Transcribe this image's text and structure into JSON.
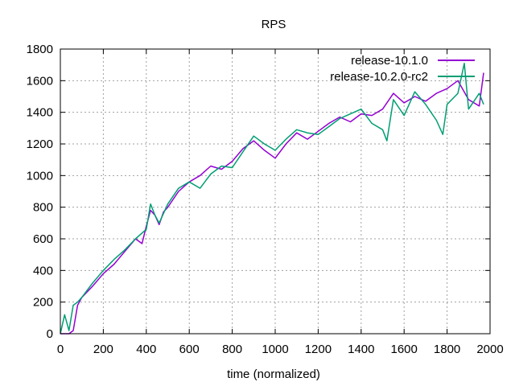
{
  "chart_data": {
    "type": "line",
    "title": "RPS",
    "xlabel": "time (normalized)",
    "ylabel": "",
    "xlim": [
      0,
      2000
    ],
    "ylim": [
      0,
      1800
    ],
    "x_ticks": [
      0,
      200,
      400,
      600,
      800,
      1000,
      1200,
      1400,
      1600,
      1800,
      2000
    ],
    "y_ticks": [
      0,
      200,
      400,
      600,
      800,
      1000,
      1200,
      1400,
      1600,
      1800
    ],
    "grid": true,
    "legend_position": "top-right",
    "series": [
      {
        "name": "release-10.1.0",
        "color": "#9400d3",
        "x": [
          0,
          40,
          60,
          80,
          100,
          150,
          200,
          250,
          300,
          350,
          380,
          400,
          420,
          440,
          460,
          480,
          500,
          550,
          600,
          650,
          700,
          750,
          800,
          850,
          900,
          950,
          1000,
          1050,
          1100,
          1150,
          1200,
          1250,
          1300,
          1350,
          1400,
          1450,
          1500,
          1550,
          1600,
          1650,
          1700,
          1750,
          1800,
          1850,
          1900,
          1950,
          1970
        ],
        "y": [
          0,
          0,
          20,
          180,
          230,
          300,
          380,
          440,
          520,
          600,
          570,
          680,
          780,
          750,
          690,
          770,
          800,
          900,
          960,
          1000,
          1060,
          1040,
          1090,
          1170,
          1220,
          1160,
          1110,
          1200,
          1270,
          1230,
          1280,
          1330,
          1370,
          1340,
          1390,
          1380,
          1420,
          1520,
          1460,
          1500,
          1470,
          1520,
          1550,
          1600,
          1480,
          1440,
          1650
        ]
      },
      {
        "name": "release-10.2.0-rc2",
        "color": "#009e73",
        "x": [
          0,
          20,
          40,
          60,
          80,
          100,
          150,
          200,
          250,
          300,
          350,
          400,
          420,
          440,
          460,
          500,
          550,
          600,
          650,
          700,
          750,
          800,
          850,
          900,
          950,
          1000,
          1050,
          1100,
          1150,
          1200,
          1250,
          1300,
          1350,
          1400,
          1450,
          1500,
          1520,
          1550,
          1600,
          1650,
          1700,
          1750,
          1780,
          1800,
          1850,
          1880,
          1900,
          1950,
          1970
        ],
        "y": [
          0,
          120,
          20,
          180,
          200,
          230,
          320,
          400,
          470,
          530,
          600,
          660,
          820,
          750,
          700,
          820,
          920,
          960,
          920,
          1010,
          1060,
          1050,
          1150,
          1250,
          1200,
          1160,
          1230,
          1290,
          1270,
          1260,
          1310,
          1360,
          1390,
          1420,
          1330,
          1290,
          1220,
          1480,
          1380,
          1530,
          1450,
          1350,
          1260,
          1450,
          1520,
          1710,
          1420,
          1520,
          1450
        ]
      }
    ]
  }
}
